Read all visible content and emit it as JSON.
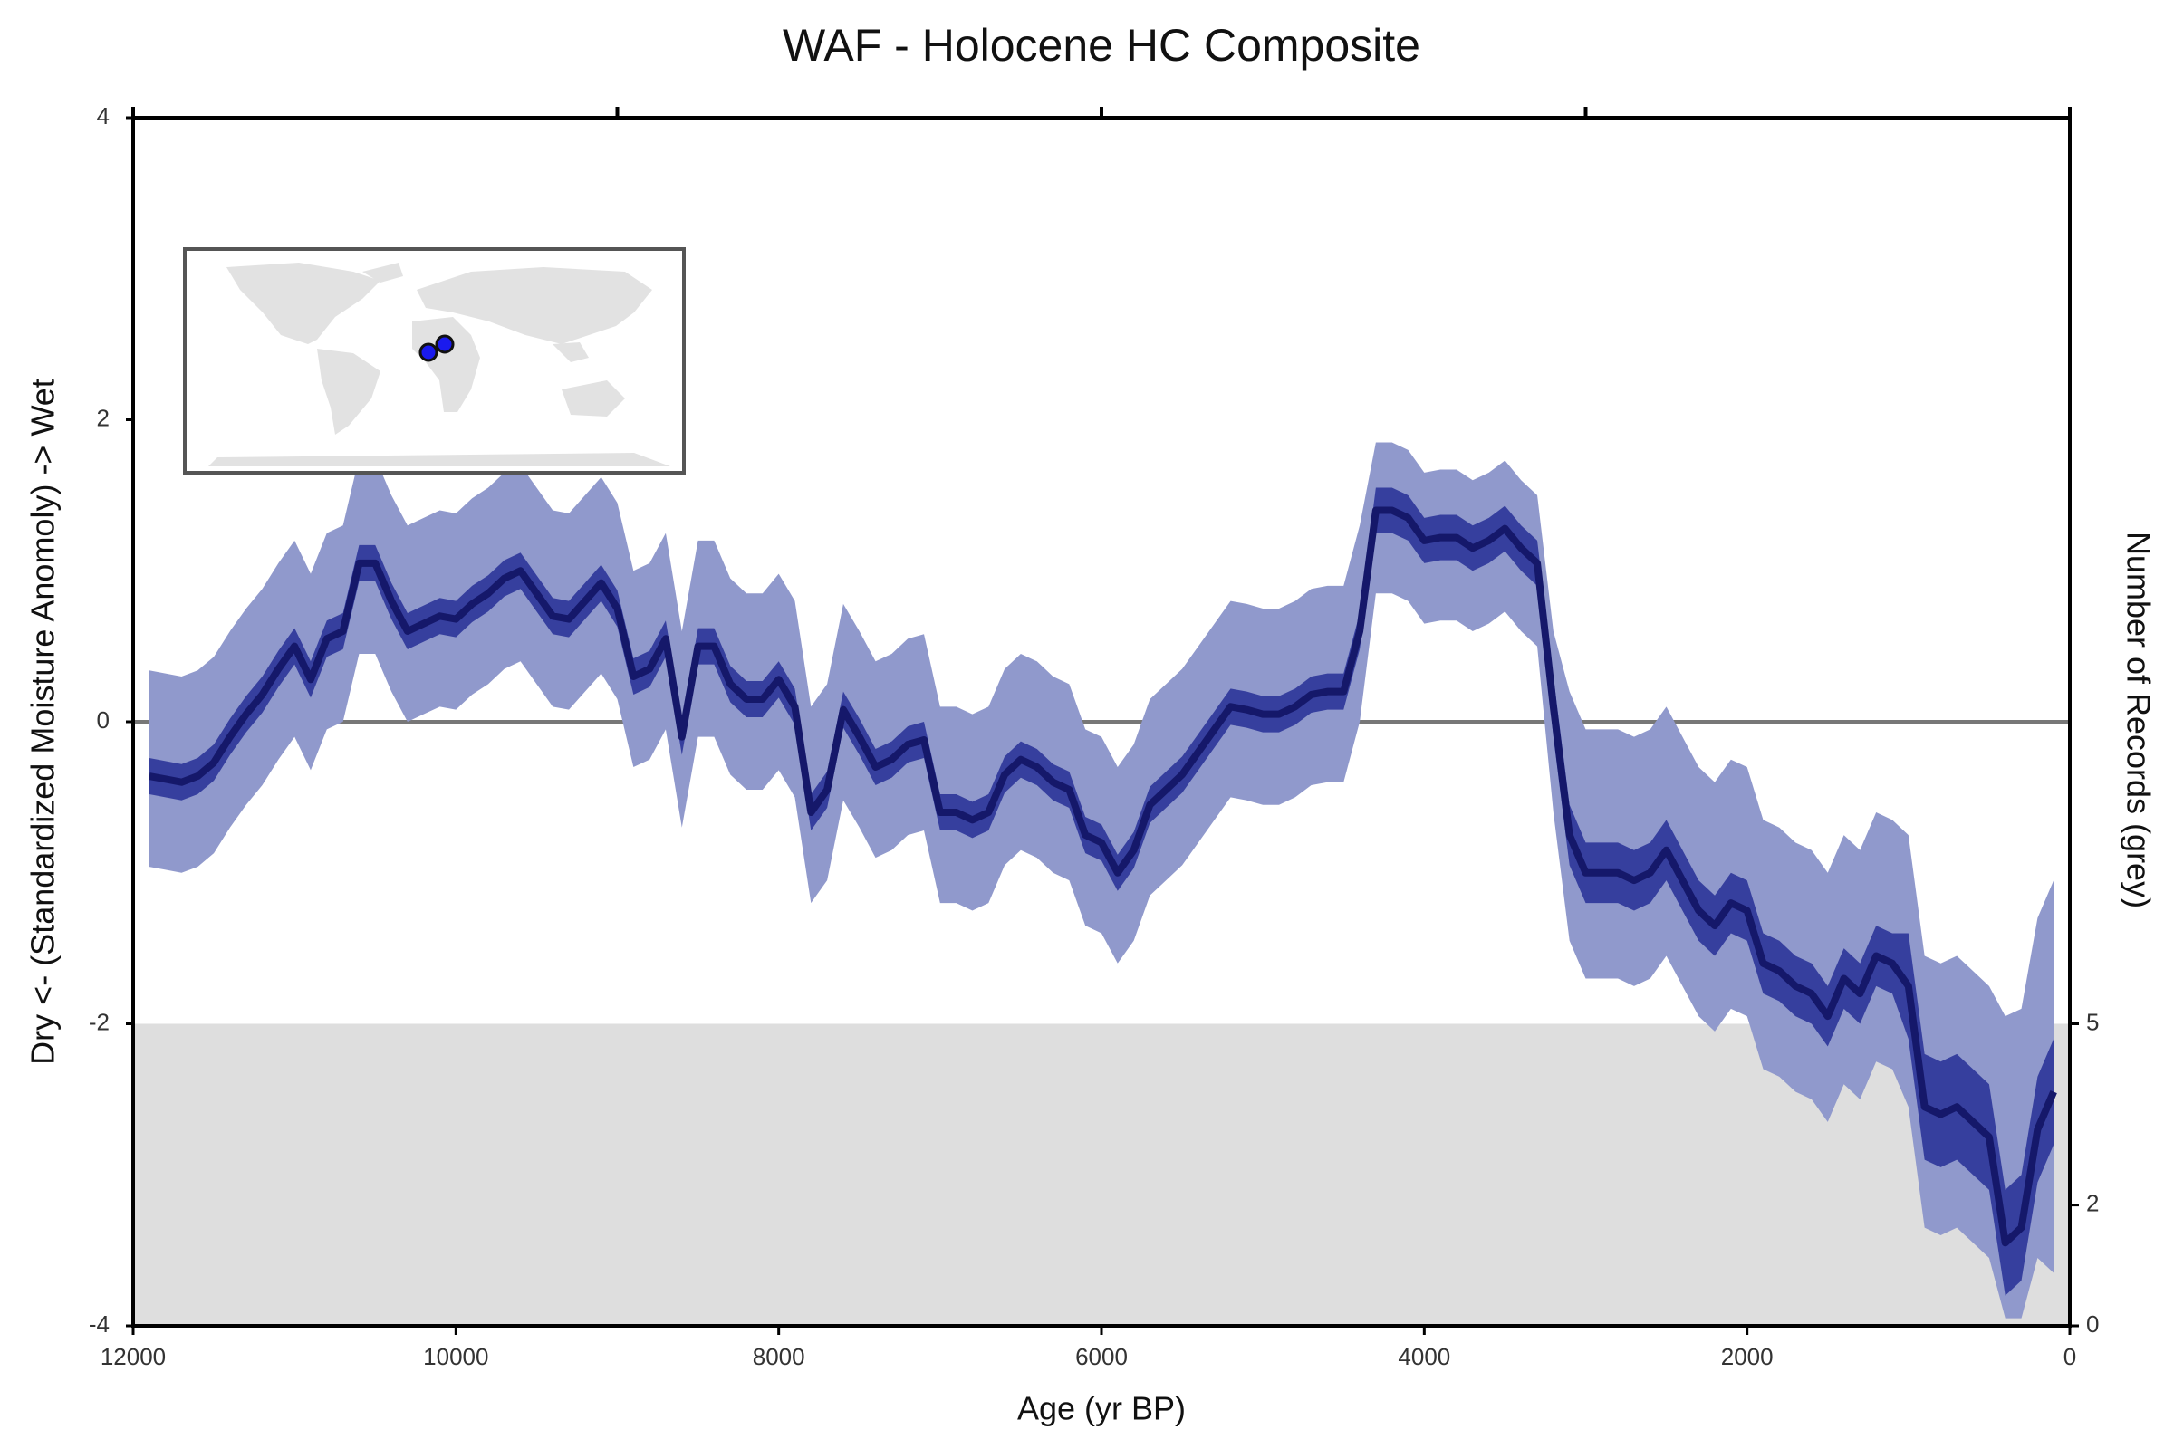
{
  "chart_data": {
    "type": "line",
    "title": "WAF - Holocene HC Composite",
    "xlabel": "Age (yr BP)",
    "ylabel": "Dry <- (Standardized Moisture Anomoly) -> Wet",
    "y2label": "Number of Records (grey)",
    "xlim": [
      12000,
      0
    ],
    "xticks": [
      12000,
      10000,
      8000,
      6000,
      4000,
      2000,
      0
    ],
    "x2ticks": [
      12000,
      9000,
      6000,
      3000,
      0
    ],
    "ylim": [
      -4,
      4
    ],
    "yticks": [
      -4,
      -2,
      0,
      2,
      4
    ],
    "y2lim": [
      0,
      20
    ],
    "y2ticks": [
      0,
      2,
      5
    ],
    "x": [
      11900,
      11800,
      11700,
      11600,
      11500,
      11400,
      11300,
      11200,
      11100,
      11000,
      10900,
      10800,
      10700,
      10600,
      10500,
      10400,
      10300,
      10200,
      10100,
      10000,
      9900,
      9800,
      9700,
      9600,
      9500,
      9400,
      9300,
      9200,
      9100,
      9000,
      8900,
      8800,
      8700,
      8600,
      8500,
      8400,
      8300,
      8200,
      8100,
      8000,
      7900,
      7800,
      7700,
      7600,
      7500,
      7400,
      7300,
      7200,
      7100,
      7000,
      6900,
      6800,
      6700,
      6600,
      6500,
      6400,
      6300,
      6200,
      6100,
      6000,
      5900,
      5800,
      5700,
      5600,
      5500,
      5400,
      5300,
      5200,
      5100,
      5000,
      4900,
      4800,
      4700,
      4600,
      4500,
      4400,
      4300,
      4200,
      4100,
      4000,
      3900,
      3800,
      3700,
      3600,
      3500,
      3400,
      3300,
      3200,
      3100,
      3000,
      2900,
      2800,
      2700,
      2600,
      2500,
      2400,
      2300,
      2200,
      2100,
      2000,
      1900,
      1800,
      1700,
      1600,
      1500,
      1400,
      1300,
      1200,
      1100,
      1000,
      900,
      800,
      700,
      600,
      500,
      400,
      300,
      200,
      100
    ],
    "records": {
      "color": "#dedede",
      "values": [
        5,
        5,
        5,
        5,
        5,
        5,
        5,
        5,
        5,
        5,
        5,
        5,
        5,
        5,
        5,
        5,
        5,
        5,
        5,
        5,
        5,
        5,
        5,
        5,
        5,
        5,
        5,
        5,
        5,
        5,
        5,
        5,
        5,
        5,
        5,
        5,
        5,
        5,
        5,
        5,
        5,
        5,
        5,
        5,
        5,
        5,
        5,
        5,
        5,
        5,
        5,
        5,
        5,
        5,
        5,
        5,
        5,
        5,
        5,
        5,
        5,
        5,
        5,
        5,
        5,
        5,
        5,
        5,
        5,
        5,
        5,
        5,
        5,
        5,
        5,
        5,
        5,
        5,
        5,
        5,
        5,
        5,
        5,
        5,
        5,
        5,
        5,
        5,
        5,
        5,
        5,
        5,
        5,
        5,
        5,
        5,
        5,
        5,
        5,
        5,
        5,
        5,
        5,
        5,
        5,
        5,
        5,
        5,
        5,
        5,
        5,
        5,
        5,
        5,
        5,
        5,
        5,
        5,
        5
      ]
    },
    "series": [
      {
        "color": "#9099cc",
        "lower": [
          -0.96,
          -0.98,
          -1.0,
          -0.96,
          -0.87,
          -0.7,
          -0.55,
          -0.42,
          -0.25,
          -0.1,
          -0.32,
          -0.05,
          0.0,
          0.45,
          0.45,
          0.2,
          0.0,
          0.05,
          0.1,
          0.08,
          0.18,
          0.25,
          0.35,
          0.4,
          0.25,
          0.1,
          0.08,
          0.2,
          0.32,
          0.15,
          -0.3,
          -0.25,
          -0.05,
          -0.7,
          -0.1,
          -0.1,
          -0.35,
          -0.45,
          -0.45,
          -0.32,
          -0.5,
          -1.2,
          -1.05,
          -0.52,
          -0.7,
          -0.9,
          -0.85,
          -0.75,
          -0.72,
          -1.2,
          -1.2,
          -1.25,
          -1.2,
          -0.95,
          -0.85,
          -0.9,
          -1.0,
          -1.05,
          -1.35,
          -1.4,
          -1.6,
          -1.45,
          -1.15,
          -1.05,
          -0.95,
          -0.8,
          -0.65,
          -0.5,
          -0.52,
          -0.55,
          -0.55,
          -0.5,
          -0.42,
          -0.4,
          -0.4,
          0.0,
          0.85,
          0.85,
          0.8,
          0.65,
          0.67,
          0.67,
          0.6,
          0.65,
          0.73,
          0.6,
          0.5,
          -0.6,
          -1.45,
          -1.7,
          -1.7,
          -1.7,
          -1.75,
          -1.7,
          -1.55,
          -1.75,
          -1.95,
          -2.05,
          -1.9,
          -1.95,
          -2.3,
          -2.35,
          -2.45,
          -2.5,
          -2.65,
          -2.4,
          -2.5,
          -2.25,
          -2.3,
          -2.55,
          -3.35,
          -3.4,
          -3.35,
          -3.45,
          -3.55,
          -3.95,
          -3.95,
          -3.55,
          -3.65
        ],
        "upper": [
          0.34,
          0.32,
          0.3,
          0.34,
          0.43,
          0.6,
          0.75,
          0.88,
          1.05,
          1.2,
          0.98,
          1.25,
          1.3,
          1.75,
          1.75,
          1.5,
          1.3,
          1.35,
          1.4,
          1.38,
          1.48,
          1.55,
          1.65,
          1.7,
          1.55,
          1.4,
          1.38,
          1.5,
          1.62,
          1.45,
          1.0,
          1.05,
          1.25,
          0.6,
          1.2,
          1.2,
          0.95,
          0.85,
          0.85,
          0.98,
          0.8,
          0.1,
          0.25,
          0.78,
          0.6,
          0.4,
          0.45,
          0.55,
          0.58,
          0.1,
          0.1,
          0.05,
          0.1,
          0.35,
          0.45,
          0.4,
          0.3,
          0.25,
          -0.05,
          -0.1,
          -0.3,
          -0.15,
          0.15,
          0.25,
          0.35,
          0.5,
          0.65,
          0.8,
          0.78,
          0.75,
          0.75,
          0.8,
          0.88,
          0.9,
          0.9,
          1.3,
          1.85,
          1.85,
          1.8,
          1.65,
          1.67,
          1.67,
          1.6,
          1.65,
          1.73,
          1.6,
          1.5,
          0.6,
          0.2,
          -0.05,
          -0.05,
          -0.05,
          -0.1,
          -0.05,
          0.1,
          -0.1,
          -0.3,
          -0.4,
          -0.25,
          -0.3,
          -0.65,
          -0.7,
          -0.8,
          -0.85,
          -1.0,
          -0.75,
          -0.85,
          -0.6,
          -0.65,
          -0.75,
          -1.55,
          -1.6,
          -1.55,
          -1.65,
          -1.75,
          -1.95,
          -1.9,
          -1.3,
          -1.05
        ]
      },
      {
        "color": "#363f9e",
        "lower": [
          -0.48,
          -0.5,
          -0.52,
          -0.48,
          -0.39,
          -0.22,
          -0.07,
          0.06,
          0.23,
          0.38,
          0.16,
          0.43,
          0.48,
          0.93,
          0.93,
          0.68,
          0.48,
          0.53,
          0.58,
          0.56,
          0.66,
          0.73,
          0.83,
          0.88,
          0.73,
          0.58,
          0.56,
          0.68,
          0.8,
          0.63,
          0.18,
          0.23,
          0.43,
          -0.22,
          0.38,
          0.38,
          0.13,
          0.03,
          0.03,
          0.16,
          -0.02,
          -0.72,
          -0.57,
          -0.04,
          -0.22,
          -0.42,
          -0.37,
          -0.27,
          -0.24,
          -0.72,
          -0.72,
          -0.77,
          -0.72,
          -0.47,
          -0.37,
          -0.42,
          -0.52,
          -0.57,
          -0.87,
          -0.92,
          -1.12,
          -0.97,
          -0.67,
          -0.57,
          -0.47,
          -0.32,
          -0.17,
          -0.02,
          -0.04,
          -0.07,
          -0.07,
          -0.02,
          0.06,
          0.08,
          0.08,
          0.48,
          1.25,
          1.25,
          1.2,
          1.05,
          1.07,
          1.07,
          1.0,
          1.05,
          1.13,
          1.0,
          0.9,
          -0.1,
          -0.95,
          -1.2,
          -1.2,
          -1.2,
          -1.25,
          -1.2,
          -1.05,
          -1.25,
          -1.45,
          -1.55,
          -1.4,
          -1.45,
          -1.8,
          -1.85,
          -1.95,
          -2.0,
          -2.15,
          -1.9,
          -2.0,
          -1.75,
          -1.8,
          -2.1,
          -2.9,
          -2.95,
          -2.9,
          -3.0,
          -3.1,
          -3.8,
          -3.7,
          -3.05,
          -2.8
        ],
        "upper": [
          -0.24,
          -0.26,
          -0.28,
          -0.24,
          -0.15,
          0.02,
          0.17,
          0.3,
          0.47,
          0.62,
          0.4,
          0.67,
          0.72,
          1.17,
          1.17,
          0.92,
          0.72,
          0.77,
          0.82,
          0.8,
          0.9,
          0.97,
          1.07,
          1.12,
          0.97,
          0.82,
          0.8,
          0.92,
          1.04,
          0.87,
          0.42,
          0.47,
          0.67,
          0.02,
          0.62,
          0.62,
          0.37,
          0.27,
          0.27,
          0.4,
          0.22,
          -0.48,
          -0.33,
          0.2,
          0.02,
          -0.18,
          -0.13,
          -0.03,
          0.0,
          -0.48,
          -0.48,
          -0.53,
          -0.48,
          -0.23,
          -0.13,
          -0.18,
          -0.28,
          -0.33,
          -0.63,
          -0.68,
          -0.88,
          -0.73,
          -0.43,
          -0.33,
          -0.23,
          -0.08,
          0.07,
          0.22,
          0.2,
          0.17,
          0.17,
          0.22,
          0.3,
          0.32,
          0.32,
          0.72,
          1.55,
          1.55,
          1.5,
          1.35,
          1.37,
          1.37,
          1.3,
          1.35,
          1.43,
          1.3,
          1.2,
          0.3,
          -0.55,
          -0.8,
          -0.8,
          -0.8,
          -0.85,
          -0.8,
          -0.65,
          -0.85,
          -1.05,
          -1.15,
          -1.0,
          -1.05,
          -1.4,
          -1.45,
          -1.55,
          -1.6,
          -1.75,
          -1.5,
          -1.6,
          -1.35,
          -1.4,
          -1.4,
          -2.2,
          -2.25,
          -2.2,
          -2.3,
          -2.4,
          -3.1,
          -3.0,
          -2.35,
          -2.1
        ]
      },
      {
        "color": "#15186a",
        "values": [
          -0.36,
          -0.38,
          -0.4,
          -0.36,
          -0.27,
          -0.1,
          0.05,
          0.18,
          0.35,
          0.5,
          0.28,
          0.55,
          0.6,
          1.05,
          1.05,
          0.8,
          0.6,
          0.65,
          0.7,
          0.68,
          0.78,
          0.85,
          0.95,
          1.0,
          0.85,
          0.7,
          0.68,
          0.8,
          0.92,
          0.75,
          0.3,
          0.35,
          0.55,
          -0.1,
          0.5,
          0.5,
          0.25,
          0.15,
          0.15,
          0.28,
          0.1,
          -0.6,
          -0.45,
          0.08,
          -0.1,
          -0.3,
          -0.25,
          -0.15,
          -0.12,
          -0.6,
          -0.6,
          -0.65,
          -0.6,
          -0.35,
          -0.25,
          -0.3,
          -0.4,
          -0.45,
          -0.75,
          -0.8,
          -1.0,
          -0.85,
          -0.55,
          -0.45,
          -0.35,
          -0.2,
          -0.05,
          0.1,
          0.08,
          0.05,
          0.05,
          0.1,
          0.18,
          0.2,
          0.2,
          0.6,
          1.4,
          1.4,
          1.35,
          1.2,
          1.22,
          1.22,
          1.15,
          1.2,
          1.28,
          1.15,
          1.05,
          0.1,
          -0.75,
          -1.0,
          -1.0,
          -1.0,
          -1.05,
          -1.0,
          -0.85,
          -1.05,
          -1.25,
          -1.35,
          -1.2,
          -1.25,
          -1.6,
          -1.65,
          -1.75,
          -1.8,
          -1.95,
          -1.7,
          -1.8,
          -1.55,
          -1.6,
          -1.75,
          -2.55,
          -2.6,
          -2.55,
          -2.65,
          -2.75,
          -3.45,
          -3.35,
          -2.7,
          -2.45
        ]
      }
    ]
  }
}
